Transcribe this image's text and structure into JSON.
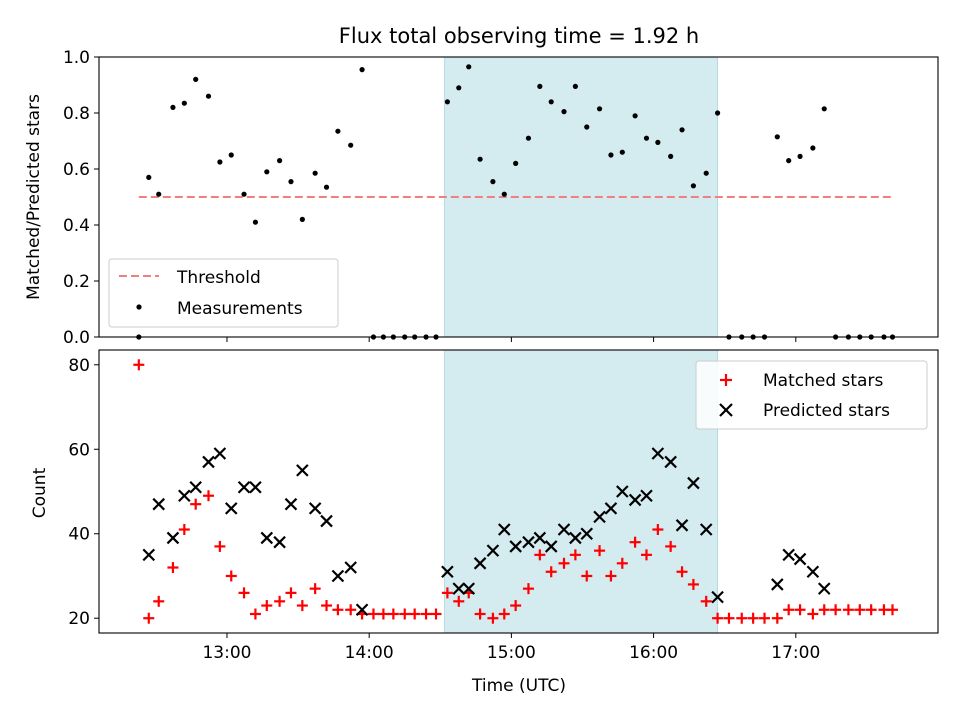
{
  "chart_data": {
    "title": "Flux total observing time = 1.92 h",
    "type": "scatter",
    "x_unit": "hours UTC",
    "xlim": [
      12.1,
      18.0
    ],
    "x_ticks": [
      {
        "value": 13,
        "label": "13:00"
      },
      {
        "value": 14,
        "label": "14:00"
      },
      {
        "value": 15,
        "label": "15:00"
      },
      {
        "value": 16,
        "label": "16:00"
      },
      {
        "value": 17,
        "label": "17:00"
      }
    ],
    "xlabel": "Time (UTC)",
    "highlight_span": [
      14.53,
      16.45
    ],
    "colors": {
      "highlight": "#d4ebf0",
      "matched": "#ff0000",
      "predicted": "#000000",
      "threshold": "#f08080",
      "measurements": "#000000"
    },
    "panels": [
      {
        "id": "ratio",
        "ylabel": "Matched/Predicted stars",
        "ylim": [
          0,
          1.0
        ],
        "y_ticks": [
          "0.0",
          "0.2",
          "0.4",
          "0.6",
          "0.8",
          "1.0"
        ],
        "legend_placement": "lower-left",
        "threshold": {
          "name": "Threshold",
          "value": 0.5,
          "x_range": [
            12.38,
            17.68
          ]
        },
        "series": [
          {
            "name": "Measurements",
            "marker": "dot",
            "x": [
              12.38,
              12.45,
              12.52,
              12.62,
              12.7,
              12.78,
              12.87,
              12.95,
              13.03,
              13.12,
              13.2,
              13.28,
              13.37,
              13.45,
              13.53,
              13.62,
              13.7,
              13.78,
              13.87,
              13.95,
              14.03,
              14.1,
              14.17,
              14.25,
              14.32,
              14.4,
              14.47,
              14.55,
              14.63,
              14.7,
              14.78,
              14.87,
              14.95,
              15.03,
              15.12,
              15.2,
              15.28,
              15.37,
              15.45,
              15.53,
              15.62,
              15.7,
              15.78,
              15.87,
              15.95,
              16.03,
              16.12,
              16.2,
              16.28,
              16.37,
              16.45,
              16.53,
              16.62,
              16.7,
              16.78,
              16.87,
              16.95,
              17.03,
              17.12,
              17.2,
              17.28,
              17.37,
              17.45,
              17.53,
              17.62,
              17.68
            ],
            "y": [
              0,
              0.57,
              0.51,
              0.82,
              0.835,
              0.92,
              0.86,
              0.625,
              0.65,
              0.51,
              0.41,
              0.59,
              0.63,
              0.555,
              0.42,
              0.585,
              0.535,
              0.735,
              0.685,
              0.955,
              0,
              0,
              0,
              0,
              0,
              0,
              0,
              0.84,
              0.89,
              0.965,
              0.635,
              0.555,
              0.51,
              0.62,
              0.71,
              0.895,
              0.84,
              0.805,
              0.895,
              0.75,
              0.815,
              0.65,
              0.66,
              0.79,
              0.71,
              0.695,
              0.645,
              0.74,
              0.54,
              0.585,
              0.8,
              0,
              0,
              0,
              0,
              0.715,
              0.63,
              0.645,
              0.675,
              0.815,
              0,
              0,
              0,
              0,
              0,
              0
            ]
          }
        ]
      },
      {
        "id": "count",
        "ylabel": "Count",
        "ylim": [
          16.5,
          83.5
        ],
        "y_ticks": [
          "20",
          "40",
          "60",
          "80"
        ],
        "legend_placement": "upper-right",
        "series": [
          {
            "name": "Matched stars",
            "marker": "plus",
            "x": [
              12.38,
              12.45,
              12.52,
              12.62,
              12.7,
              12.78,
              12.87,
              12.95,
              13.03,
              13.12,
              13.2,
              13.28,
              13.37,
              13.45,
              13.53,
              13.62,
              13.7,
              13.78,
              13.87,
              13.95,
              14.03,
              14.1,
              14.17,
              14.25,
              14.32,
              14.4,
              14.47,
              14.55,
              14.63,
              14.7,
              14.78,
              14.87,
              14.95,
              15.03,
              15.12,
              15.2,
              15.28,
              15.37,
              15.45,
              15.53,
              15.62,
              15.7,
              15.78,
              15.87,
              15.95,
              16.03,
              16.12,
              16.2,
              16.28,
              16.37,
              16.45,
              16.53,
              16.62,
              16.7,
              16.78,
              16.87,
              16.95,
              17.03,
              17.12,
              17.2,
              17.28,
              17.37,
              17.45,
              17.53,
              17.62,
              17.68
            ],
            "y": [
              80,
              20,
              24,
              32,
              41,
              47,
              49,
              37,
              30,
              26,
              21,
              23,
              24,
              26,
              23,
              27,
              23,
              22,
              22,
              21,
              21,
              21,
              21,
              21,
              21,
              21,
              21,
              26,
              24,
              26,
              21,
              20,
              21,
              23,
              27,
              35,
              31,
              33,
              35,
              30,
              36,
              30,
              33,
              38,
              35,
              41,
              37,
              31,
              28,
              24,
              20,
              20,
              20,
              20,
              20,
              20,
              22,
              22,
              21,
              22,
              22,
              22,
              22,
              22,
              22,
              22
            ]
          },
          {
            "name": "Predicted stars",
            "marker": "x",
            "x": [
              12.45,
              12.52,
              12.62,
              12.7,
              12.78,
              12.87,
              12.95,
              13.03,
              13.12,
              13.2,
              13.28,
              13.37,
              13.45,
              13.53,
              13.62,
              13.7,
              13.78,
              13.87,
              13.95,
              14.55,
              14.63,
              14.7,
              14.78,
              14.87,
              14.95,
              15.03,
              15.12,
              15.2,
              15.28,
              15.37,
              15.45,
              15.53,
              15.62,
              15.7,
              15.78,
              15.87,
              15.95,
              16.03,
              16.12,
              16.2,
              16.28,
              16.37,
              16.45,
              16.87,
              16.95,
              17.03,
              17.12,
              17.2
            ],
            "y": [
              35,
              47,
              39,
              49,
              51,
              57,
              59,
              46,
              51,
              51,
              39,
              38,
              47,
              55,
              46,
              43,
              30,
              32,
              22,
              31,
              27,
              27,
              33,
              36,
              41,
              37,
              38,
              39,
              37,
              41,
              39,
              40,
              44,
              46,
              50,
              48,
              49,
              59,
              57,
              42,
              52,
              41,
              25,
              28,
              35,
              34,
              31,
              27
            ]
          }
        ]
      }
    ]
  }
}
